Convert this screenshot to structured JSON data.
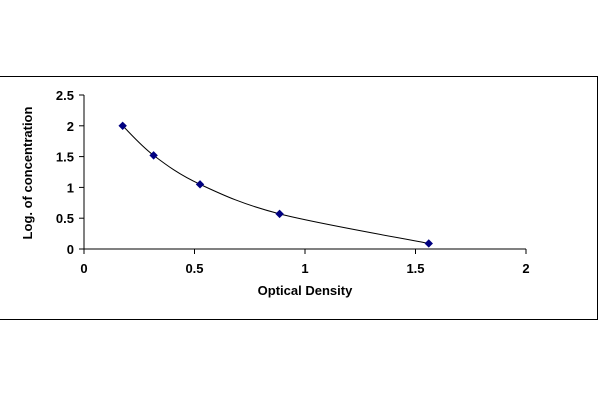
{
  "chart_data": {
    "type": "scatter",
    "title": "",
    "xlabel": "Optical Density",
    "ylabel": "Log. of concentration",
    "xlim": [
      0,
      2
    ],
    "ylim": [
      0,
      2.5
    ],
    "x_ticks": [
      "0",
      "0.5",
      "1",
      "1.5",
      "2"
    ],
    "y_ticks": [
      "0",
      "0.5",
      "1",
      "1.5",
      "2",
      "2.5"
    ],
    "grid": false,
    "legend": "none",
    "trendline": true,
    "series": [
      {
        "x": [
          0.175,
          0.315,
          0.525,
          0.885,
          1.56
        ],
        "y": [
          2.0,
          1.52,
          1.05,
          0.57,
          0.09
        ],
        "color": "#000080",
        "marker": "diamond"
      }
    ]
  }
}
